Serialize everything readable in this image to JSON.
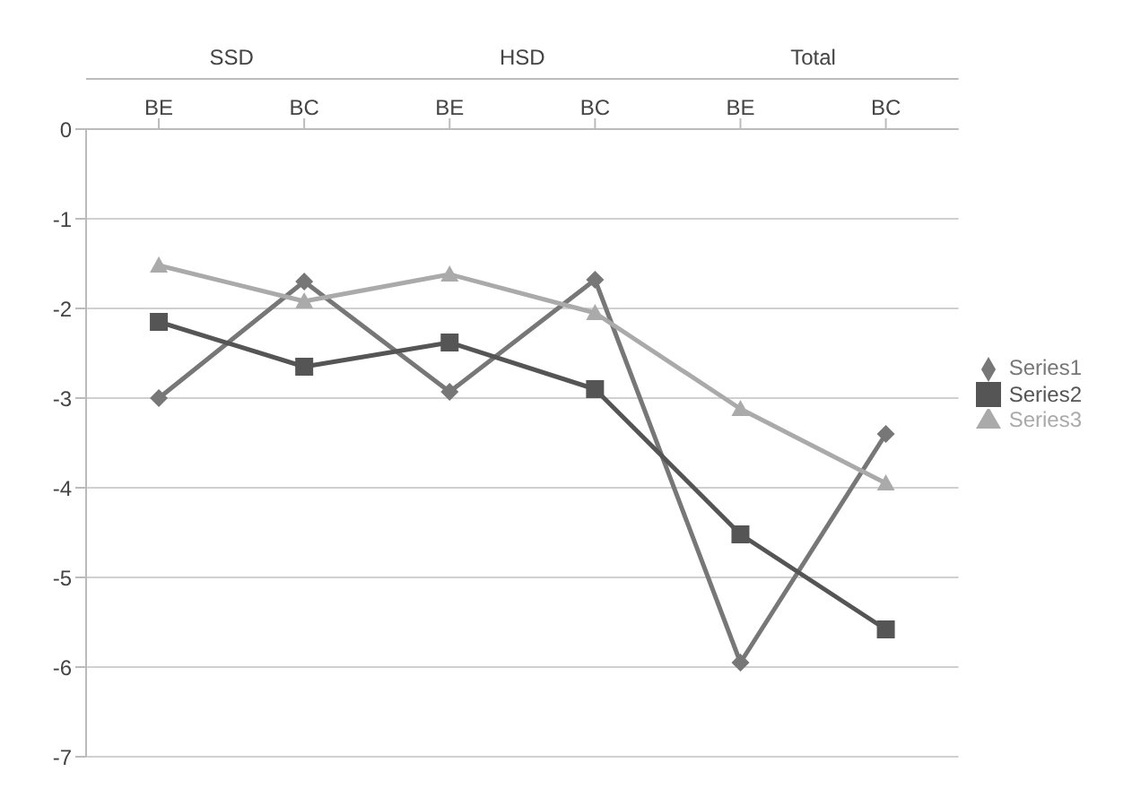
{
  "chart_data": {
    "type": "line",
    "categories": [
      "BE",
      "BC",
      "BE",
      "BC",
      "BE",
      "BC"
    ],
    "annotations": [
      "SSD",
      "HSD",
      "Total"
    ],
    "series": [
      {
        "name": "Series1",
        "color": "#777777",
        "marker": "diamond",
        "values": [
          -3.0,
          -1.7,
          -2.93,
          -1.68,
          -5.95,
          -3.4
        ]
      },
      {
        "name": "Series2",
        "color": "#555555",
        "marker": "square",
        "values": [
          -2.15,
          -2.65,
          -2.38,
          -2.9,
          -4.52,
          -5.58
        ]
      },
      {
        "name": "Series3",
        "color": "#aaaaaa",
        "marker": "triangle",
        "values": [
          -1.52,
          -1.92,
          -1.62,
          -2.05,
          -3.12,
          -3.95
        ]
      }
    ],
    "ylim": [
      -7,
      0
    ],
    "yticks": [
      -7,
      -6,
      -5,
      -4,
      -3,
      -2,
      -1,
      0
    ],
    "grid": "y",
    "legend": "right"
  }
}
